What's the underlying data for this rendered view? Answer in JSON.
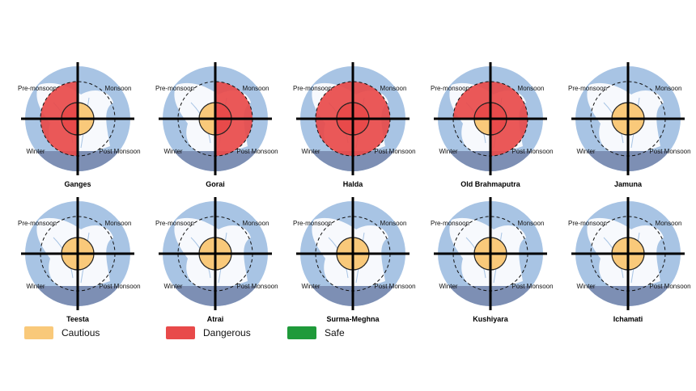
{
  "seasons": {
    "top_left": "Pre-monsoon",
    "top_right": "Monsoon",
    "bottom_left": "Winter",
    "bottom_right": "Post Monsoon"
  },
  "rivers": [
    {
      "name": "Ganges",
      "pre_monsoon": "Dangerous",
      "monsoon": "Cautious",
      "post_monsoon": "Cautious",
      "winter": "Dangerous"
    },
    {
      "name": "Gorai",
      "pre_monsoon": "Cautious",
      "monsoon": "Dangerous",
      "post_monsoon": "Dangerous",
      "winter": "Cautious"
    },
    {
      "name": "Halda",
      "pre_monsoon": "Dangerous",
      "monsoon": "Dangerous",
      "post_monsoon": "Dangerous",
      "winter": "Dangerous"
    },
    {
      "name": "Old Brahmaputra",
      "pre_monsoon": "Dangerous",
      "monsoon": "Dangerous",
      "post_monsoon": "Dangerous",
      "winter": "Cautious"
    },
    {
      "name": "Jamuna",
      "pre_monsoon": "Cautious",
      "monsoon": "Cautious",
      "post_monsoon": "Cautious",
      "winter": "Cautious"
    },
    {
      "name": "Teesta",
      "pre_monsoon": "Cautious",
      "monsoon": "Cautious",
      "post_monsoon": "Cautious",
      "winter": "Cautious"
    },
    {
      "name": "Atrai",
      "pre_monsoon": "Cautious",
      "monsoon": "Cautious",
      "post_monsoon": "Cautious",
      "winter": "Cautious"
    },
    {
      "name": "Surma-Meghna",
      "pre_monsoon": "Cautious",
      "monsoon": "Cautious",
      "post_monsoon": "Cautious",
      "winter": "Cautious"
    },
    {
      "name": "Kushiyara",
      "pre_monsoon": "Cautious",
      "monsoon": "Cautious",
      "post_monsoon": "Cautious",
      "winter": "Cautious"
    },
    {
      "name": "Ichamati",
      "pre_monsoon": "Cautious",
      "monsoon": "Cautious",
      "post_monsoon": "Cautious",
      "winter": "Cautious"
    }
  ],
  "legend": [
    {
      "label": "Cautious",
      "color": "#f9c97a"
    },
    {
      "label": "Dangerous",
      "color": "#e84a4a"
    },
    {
      "label": "Safe",
      "color": "#1f9a3a"
    }
  ],
  "colors": {
    "circle_outer": "#a8c4e4",
    "land": "#ffffff",
    "sea": "#7d8fb4",
    "cautious": "#f9c97a",
    "dangerous": "#e84a4a"
  }
}
